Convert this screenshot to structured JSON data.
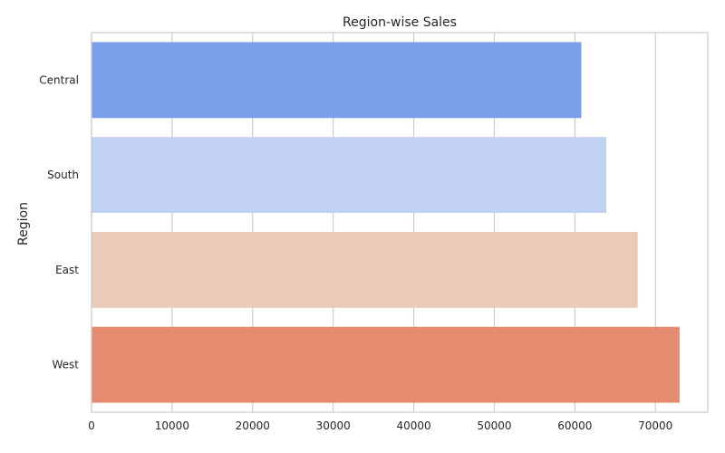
{
  "chart_data": {
    "type": "bar",
    "orientation": "horizontal",
    "title": "Region-wise Sales",
    "xlabel": "",
    "ylabel": "Region",
    "categories": [
      "Central",
      "South",
      "East",
      "West"
    ],
    "values": [
      60800,
      63900,
      67800,
      73000
    ],
    "colors": [
      "#7b9ee8",
      "#c0d1f2",
      "#eccab9",
      "#e58b6f"
    ],
    "xlim": [
      0,
      76500
    ],
    "xticks": [
      0,
      10000,
      20000,
      30000,
      40000,
      50000,
      60000,
      70000
    ],
    "xtick_labels": [
      "0",
      "10000",
      "20000",
      "30000",
      "40000",
      "50000",
      "60000",
      "70000"
    ],
    "grid": "vertical",
    "legend": "none"
  }
}
